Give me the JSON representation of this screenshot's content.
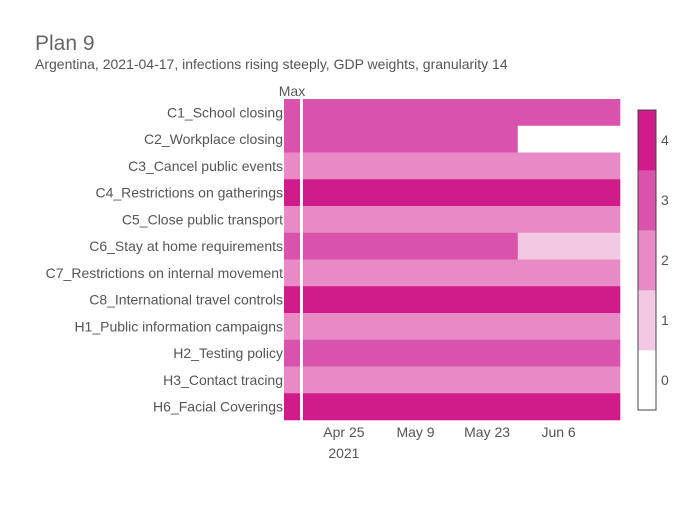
{
  "chart_data": {
    "type": "heatmap",
    "title": "Plan 9",
    "subtitle": "Argentina, 2021-04-17, infections rising steeply, GDP weights, granularity 14",
    "max_column_label": "Max",
    "rows": [
      "C1_School closing",
      "C2_Workplace closing",
      "C3_Cancel public events",
      "C4_Restrictions on gatherings",
      "C5_Close public transport",
      "C6_Stay at home requirements",
      "C7_Restrictions on internal movement",
      "C8_International travel controls",
      "H1_Public information campaigns",
      "H2_Testing policy",
      "H3_Contact tracing",
      "H6_Facial Coverings"
    ],
    "max_values": [
      3,
      3,
      2,
      4,
      2,
      3,
      2,
      4,
      2,
      3,
      2,
      4
    ],
    "x_start": "2021-04-17",
    "x_end": "2021-06-18",
    "periods": [
      {
        "start": "2021-04-17",
        "end": "2021-05-29"
      },
      {
        "start": "2021-05-29",
        "end": "2021-06-18"
      }
    ],
    "plan_values": [
      [
        3,
        3
      ],
      [
        3,
        0
      ],
      [
        2,
        2
      ],
      [
        4,
        4
      ],
      [
        2,
        2
      ],
      [
        3,
        1
      ],
      [
        2,
        2
      ],
      [
        4,
        4
      ],
      [
        2,
        2
      ],
      [
        3,
        3
      ],
      [
        2,
        2
      ],
      [
        4,
        4
      ]
    ],
    "x_ticks": [
      {
        "date": "2021-04-25",
        "label": "Apr 25",
        "sublabel": "2021"
      },
      {
        "date": "2021-05-09",
        "label": "May 9",
        "sublabel": ""
      },
      {
        "date": "2021-05-23",
        "label": "May 23",
        "sublabel": ""
      },
      {
        "date": "2021-06-06",
        "label": "Jun 6",
        "sublabel": ""
      }
    ],
    "colorbar": {
      "min": 0,
      "max": 4,
      "ticks": [
        "0",
        "1",
        "2",
        "3",
        "4"
      ],
      "colors": [
        "#ffffff",
        "#f2c8e2",
        "#e78ac6",
        "#d952ac",
        "#d01c8b"
      ]
    },
    "text_color": "#555555"
  }
}
